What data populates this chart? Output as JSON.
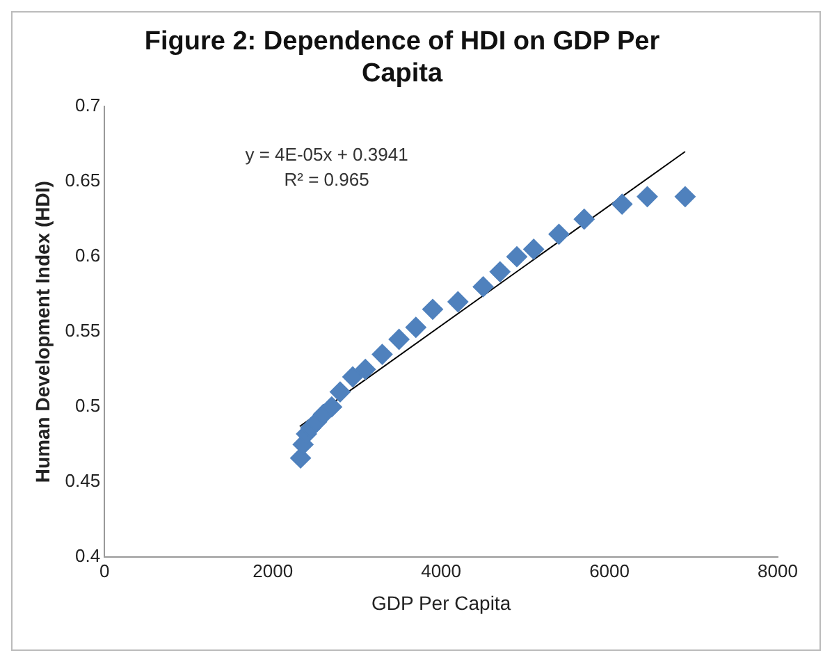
{
  "chart_data": {
    "type": "scatter",
    "title": "Figure 2: Dependence of HDI on GDP Per Capita",
    "xlabel": "GDP Per Capita",
    "ylabel": "Human Development Index (HDI)",
    "xlim": [
      0,
      8000
    ],
    "xticks": [
      0,
      2000,
      4000,
      6000,
      8000
    ],
    "ylim": [
      0.4,
      0.7
    ],
    "yticks": [
      0.4,
      0.45,
      0.5,
      0.55,
      0.6,
      0.65,
      0.7
    ],
    "grid": false,
    "legend": false,
    "annotations": [
      "y = 4E-05x + 0.3941",
      "R² = 0.965"
    ],
    "series": [
      {
        "marker": "diamond",
        "color": "#4f81bd",
        "x": [
          2330,
          2360,
          2400,
          2450,
          2520,
          2600,
          2700,
          2800,
          2950,
          3100,
          3300,
          3500,
          3700,
          3900,
          4200,
          4500,
          4700,
          4900,
          5100,
          5400,
          5700,
          6150,
          6450,
          6900
        ],
        "values": [
          0.466,
          0.475,
          0.482,
          0.486,
          0.49,
          0.495,
          0.5,
          0.51,
          0.52,
          0.525,
          0.535,
          0.545,
          0.553,
          0.565,
          0.57,
          0.58,
          0.59,
          0.6,
          0.605,
          0.615,
          0.625,
          0.635,
          0.64,
          0.64
        ]
      },
      {
        "type": "line",
        "marker": "none",
        "color": "#000000",
        "x": [
          2320,
          6900
        ],
        "values": [
          0.487,
          0.67
        ]
      }
    ]
  }
}
